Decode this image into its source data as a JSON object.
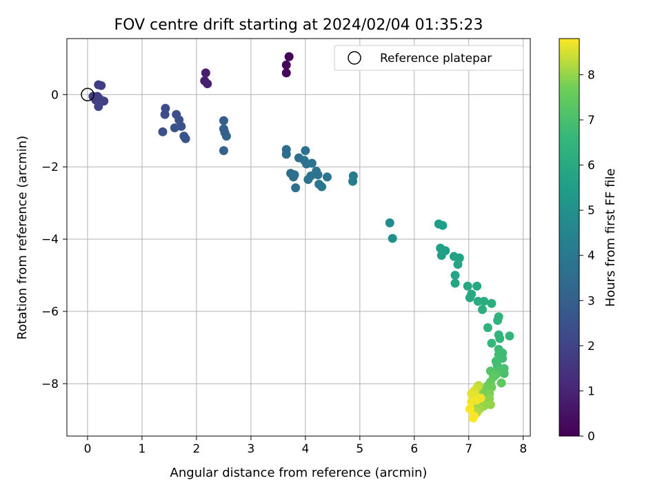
{
  "chart_data": {
    "type": "scatter",
    "title": "FOV centre drift starting at 2024/02/04 01:35:23",
    "xlabel": "Angular distance from reference (arcmin)",
    "ylabel": "Rotation from reference (arcmin)",
    "xlim": [
      -0.38,
      8.13
    ],
    "ylim": [
      -9.45,
      1.55
    ],
    "xticks": [
      0,
      1,
      2,
      3,
      4,
      5,
      6,
      7,
      8
    ],
    "yticks": [
      0,
      -2,
      -4,
      -6,
      -8
    ],
    "grid": true,
    "legend": {
      "position": "top-right",
      "entries": [
        "Reference platepar"
      ]
    },
    "reference": {
      "x": 0,
      "y": 0
    },
    "colorbar": {
      "label": "Hours from first FF file",
      "range": [
        0,
        8.8
      ],
      "ticks": [
        0,
        1,
        2,
        3,
        4,
        5,
        6,
        7,
        8
      ],
      "colormap": "viridis"
    },
    "points": [
      {
        "x": 3.7,
        "y": 1.05,
        "h": 0.1
      },
      {
        "x": 3.65,
        "y": 0.82,
        "h": 0.2
      },
      {
        "x": 3.65,
        "y": 0.6,
        "h": 0.2
      },
      {
        "x": 2.17,
        "y": 0.6,
        "h": 0.8
      },
      {
        "x": 2.15,
        "y": 0.38,
        "h": 0.8
      },
      {
        "x": 2.2,
        "y": 0.3,
        "h": 0.9
      },
      {
        "x": 0.2,
        "y": 0.27,
        "h": 1.7
      },
      {
        "x": 0.25,
        "y": 0.25,
        "h": 1.8
      },
      {
        "x": 0.1,
        "y": -0.05,
        "h": 1.8
      },
      {
        "x": 0.18,
        "y": -0.05,
        "h": 1.8
      },
      {
        "x": 0.22,
        "y": -0.12,
        "h": 1.9
      },
      {
        "x": 0.3,
        "y": -0.18,
        "h": 1.9
      },
      {
        "x": 0.15,
        "y": -0.15,
        "h": 1.8
      },
      {
        "x": 0.2,
        "y": -0.33,
        "h": 2.0
      },
      {
        "x": 1.43,
        "y": -0.38,
        "h": 2.3
      },
      {
        "x": 1.42,
        "y": -0.55,
        "h": 2.3
      },
      {
        "x": 1.63,
        "y": -0.55,
        "h": 2.4
      },
      {
        "x": 1.68,
        "y": -0.7,
        "h": 2.5
      },
      {
        "x": 1.72,
        "y": -0.88,
        "h": 2.5
      },
      {
        "x": 1.6,
        "y": -0.92,
        "h": 2.5
      },
      {
        "x": 1.38,
        "y": -1.03,
        "h": 2.4
      },
      {
        "x": 1.77,
        "y": -1.15,
        "h": 2.6
      },
      {
        "x": 1.8,
        "y": -1.22,
        "h": 2.6
      },
      {
        "x": 2.5,
        "y": -0.72,
        "h": 3.0
      },
      {
        "x": 2.5,
        "y": -0.95,
        "h": 3.0
      },
      {
        "x": 2.52,
        "y": -1.05,
        "h": 3.0
      },
      {
        "x": 2.55,
        "y": -1.15,
        "h": 3.1
      },
      {
        "x": 2.5,
        "y": -1.55,
        "h": 3.1
      },
      {
        "x": 3.65,
        "y": -1.52,
        "h": 3.5
      },
      {
        "x": 3.65,
        "y": -1.65,
        "h": 3.5
      },
      {
        "x": 3.88,
        "y": -1.75,
        "h": 3.6
      },
      {
        "x": 4.0,
        "y": -1.55,
        "h": 3.7
      },
      {
        "x": 3.98,
        "y": -1.82,
        "h": 3.7
      },
      {
        "x": 4.02,
        "y": -1.92,
        "h": 3.7
      },
      {
        "x": 4.12,
        "y": -1.9,
        "h": 3.8
      },
      {
        "x": 3.73,
        "y": -2.18,
        "h": 3.6
      },
      {
        "x": 3.8,
        "y": -2.22,
        "h": 3.6
      },
      {
        "x": 3.78,
        "y": -2.28,
        "h": 3.6
      },
      {
        "x": 4.2,
        "y": -2.12,
        "h": 3.8
      },
      {
        "x": 4.23,
        "y": -2.22,
        "h": 3.8
      },
      {
        "x": 4.1,
        "y": -2.25,
        "h": 3.8
      },
      {
        "x": 4.05,
        "y": -2.35,
        "h": 3.8
      },
      {
        "x": 4.4,
        "y": -2.28,
        "h": 3.9
      },
      {
        "x": 4.25,
        "y": -2.48,
        "h": 3.9
      },
      {
        "x": 4.3,
        "y": -2.55,
        "h": 3.9
      },
      {
        "x": 3.82,
        "y": -2.58,
        "h": 3.7
      },
      {
        "x": 4.88,
        "y": -2.25,
        "h": 4.1
      },
      {
        "x": 4.87,
        "y": -2.4,
        "h": 4.1
      },
      {
        "x": 5.55,
        "y": -3.55,
        "h": 4.8
      },
      {
        "x": 5.6,
        "y": -3.98,
        "h": 4.9
      },
      {
        "x": 6.45,
        "y": -3.58,
        "h": 5.5
      },
      {
        "x": 6.52,
        "y": -3.62,
        "h": 5.5
      },
      {
        "x": 6.48,
        "y": -4.25,
        "h": 5.6
      },
      {
        "x": 6.57,
        "y": -4.32,
        "h": 5.6
      },
      {
        "x": 6.5,
        "y": -4.45,
        "h": 5.6
      },
      {
        "x": 6.73,
        "y": -4.48,
        "h": 5.7
      },
      {
        "x": 6.83,
        "y": -4.52,
        "h": 5.7
      },
      {
        "x": 6.8,
        "y": -4.7,
        "h": 5.8
      },
      {
        "x": 6.75,
        "y": -5.0,
        "h": 5.8
      },
      {
        "x": 6.75,
        "y": -5.22,
        "h": 5.8
      },
      {
        "x": 6.98,
        "y": -5.3,
        "h": 5.9
      },
      {
        "x": 7.15,
        "y": -5.3,
        "h": 5.9
      },
      {
        "x": 7.05,
        "y": -5.52,
        "h": 6.0
      },
      {
        "x": 7.02,
        "y": -5.62,
        "h": 6.0
      },
      {
        "x": 7.17,
        "y": -5.72,
        "h": 6.1
      },
      {
        "x": 7.28,
        "y": -5.72,
        "h": 6.1
      },
      {
        "x": 7.42,
        "y": -5.78,
        "h": 6.2
      },
      {
        "x": 7.25,
        "y": -5.95,
        "h": 6.2
      },
      {
        "x": 7.55,
        "y": -6.15,
        "h": 6.4
      },
      {
        "x": 7.53,
        "y": -6.25,
        "h": 6.4
      },
      {
        "x": 7.35,
        "y": -6.45,
        "h": 6.4
      },
      {
        "x": 7.55,
        "y": -6.65,
        "h": 6.5
      },
      {
        "x": 7.57,
        "y": -6.75,
        "h": 6.5
      },
      {
        "x": 7.75,
        "y": -6.68,
        "h": 6.5
      },
      {
        "x": 7.42,
        "y": -6.88,
        "h": 6.6
      },
      {
        "x": 7.55,
        "y": -7.05,
        "h": 6.7
      },
      {
        "x": 7.62,
        "y": -7.15,
        "h": 6.8
      },
      {
        "x": 7.55,
        "y": -7.2,
        "h": 6.8
      },
      {
        "x": 7.62,
        "y": -7.3,
        "h": 6.8
      },
      {
        "x": 7.5,
        "y": -7.38,
        "h": 6.9
      },
      {
        "x": 7.52,
        "y": -7.48,
        "h": 6.9
      },
      {
        "x": 7.65,
        "y": -7.58,
        "h": 7.0
      },
      {
        "x": 7.65,
        "y": -7.72,
        "h": 7.0
      },
      {
        "x": 7.55,
        "y": -7.62,
        "h": 7.0
      },
      {
        "x": 7.4,
        "y": -7.65,
        "h": 7.2
      },
      {
        "x": 7.5,
        "y": -7.75,
        "h": 7.3
      },
      {
        "x": 7.45,
        "y": -7.82,
        "h": 7.4
      },
      {
        "x": 7.6,
        "y": -7.98,
        "h": 7.4
      },
      {
        "x": 7.4,
        "y": -7.95,
        "h": 7.5
      },
      {
        "x": 7.35,
        "y": -8.05,
        "h": 7.6
      },
      {
        "x": 7.42,
        "y": -8.1,
        "h": 7.6
      },
      {
        "x": 7.3,
        "y": -8.15,
        "h": 7.7
      },
      {
        "x": 7.22,
        "y": -8.22,
        "h": 7.8
      },
      {
        "x": 7.38,
        "y": -8.28,
        "h": 7.8
      },
      {
        "x": 7.28,
        "y": -8.35,
        "h": 7.8
      },
      {
        "x": 7.38,
        "y": -8.42,
        "h": 7.9
      },
      {
        "x": 7.3,
        "y": -8.5,
        "h": 7.9
      },
      {
        "x": 7.22,
        "y": -8.55,
        "h": 8.0
      },
      {
        "x": 7.4,
        "y": -8.58,
        "h": 8.0
      },
      {
        "x": 7.28,
        "y": -8.62,
        "h": 8.0
      },
      {
        "x": 7.2,
        "y": -8.7,
        "h": 8.1
      },
      {
        "x": 7.12,
        "y": -8.65,
        "h": 8.1
      },
      {
        "x": 7.08,
        "y": -8.75,
        "h": 8.2
      },
      {
        "x": 7.15,
        "y": -8.8,
        "h": 8.2
      },
      {
        "x": 7.18,
        "y": -8.05,
        "h": 8.3
      },
      {
        "x": 7.15,
        "y": -8.12,
        "h": 8.4
      },
      {
        "x": 7.1,
        "y": -8.2,
        "h": 8.5
      },
      {
        "x": 7.05,
        "y": -8.28,
        "h": 8.6
      },
      {
        "x": 7.12,
        "y": -8.32,
        "h": 8.6
      },
      {
        "x": 7.22,
        "y": -8.4,
        "h": 8.7
      },
      {
        "x": 7.15,
        "y": -8.45,
        "h": 8.7
      },
      {
        "x": 7.05,
        "y": -8.5,
        "h": 8.7
      },
      {
        "x": 7.02,
        "y": -8.7,
        "h": 8.8
      },
      {
        "x": 7.1,
        "y": -8.9,
        "h": 8.8
      },
      {
        "x": 7.08,
        "y": -8.95,
        "h": 8.8
      }
    ]
  }
}
